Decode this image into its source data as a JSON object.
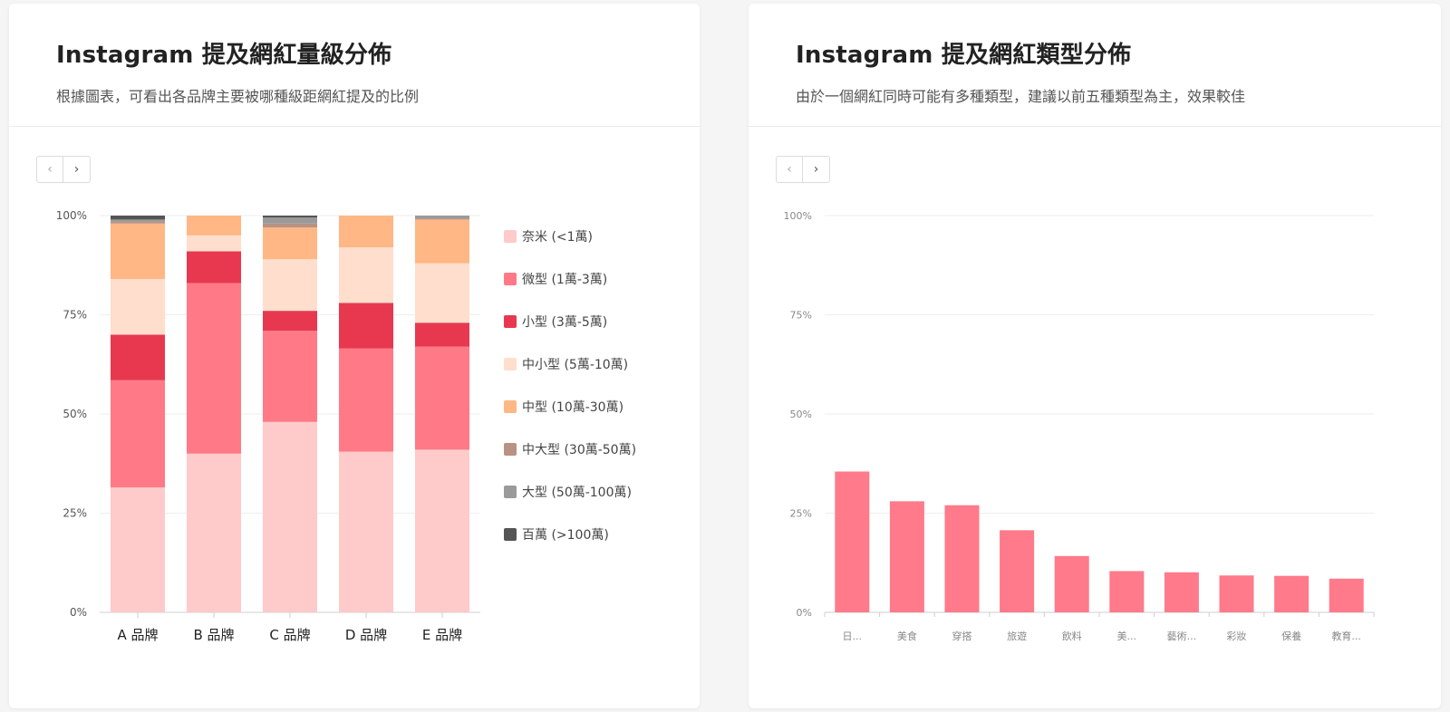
{
  "left_card": {
    "title": "Instagram 提及網紅量級分佈",
    "subtitle": "根據圖表，可看出各品牌主要被哪種級距網紅提及的比例",
    "nav_prev": "‹",
    "nav_next": "›"
  },
  "right_card": {
    "title": "Instagram 提及網紅類型分佈",
    "subtitle": "由於一個網紅同時可能有多種類型，建議以前五種類型為主，效果較佳",
    "nav_prev": "‹",
    "nav_next": "›"
  },
  "chart_data": [
    {
      "type": "bar",
      "stacked": true,
      "categories": [
        "A 品牌",
        "B 品牌",
        "C 品牌",
        "D 品牌",
        "E 品牌"
      ],
      "yticks": [
        "0%",
        "25%",
        "50%",
        "75%",
        "100%"
      ],
      "ylim": [
        0,
        100
      ],
      "legend_position": "right",
      "series": [
        {
          "name": "奈米 (<1萬)",
          "color": "#ffcaca",
          "values": [
            31.5,
            40,
            48,
            40.5,
            41
          ]
        },
        {
          "name": "微型 (1萬-3萬)",
          "color": "#ff7a86",
          "values": [
            27,
            43,
            23,
            26,
            26
          ]
        },
        {
          "name": "小型 (3萬-5萬)",
          "color": "#e8384f",
          "values": [
            11.5,
            8,
            5,
            11.5,
            6
          ]
        },
        {
          "name": "中小型 (5萬-10萬)",
          "color": "#ffdecd",
          "values": [
            14,
            4,
            13,
            14,
            15
          ]
        },
        {
          "name": "中型 (10萬-30萬)",
          "color": "#ffb785",
          "values": [
            14,
            5,
            8,
            8,
            11
          ]
        },
        {
          "name": "中大型 (30萬-50萬)",
          "color": "#b89283",
          "values": [
            0.5,
            0,
            1,
            0,
            0.3
          ]
        },
        {
          "name": "大型 (50萬-100萬)",
          "color": "#9a9a9a",
          "values": [
            0.5,
            0,
            1.5,
            0,
            0.7
          ]
        },
        {
          "name": "百萬 (>100萬)",
          "color": "#555555",
          "values": [
            1,
            0,
            0.5,
            0,
            0
          ]
        }
      ]
    },
    {
      "type": "bar",
      "categories": [
        "日...",
        "美食",
        "穿搭",
        "旅遊",
        "飲料",
        "美...",
        "藝術...",
        "彩妝",
        "保養",
        "教育..."
      ],
      "values": [
        35.5,
        28,
        27,
        20.7,
        14.2,
        10.4,
        10.1,
        9.3,
        9.2,
        8.5
      ],
      "yticks": [
        "0%",
        "25%",
        "50%",
        "75%",
        "100%"
      ],
      "ylim": [
        0,
        100
      ],
      "color": "#ff7a8a",
      "grid": true
    }
  ]
}
